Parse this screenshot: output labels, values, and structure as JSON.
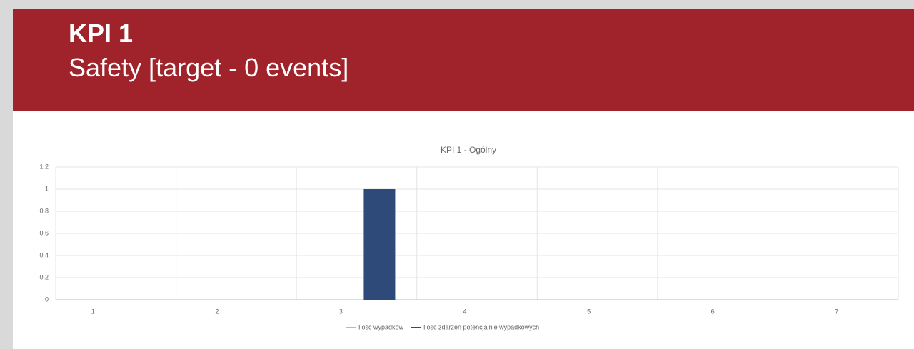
{
  "header": {
    "title": "KPI 1",
    "subtitle": "Safety [target - 0 events]"
  },
  "chart_data": {
    "type": "bar",
    "title": "KPI 1 - Ogólny",
    "categories": [
      "1",
      "2",
      "3",
      "4",
      "5",
      "6",
      "7"
    ],
    "series": [
      {
        "name": "Ilość wypadków",
        "color": "#8fc3e8",
        "values": [
          0,
          0,
          0,
          0,
          0,
          0,
          0
        ]
      },
      {
        "name": "Ilość zdarzeń potencjalnie wypadkowych",
        "color": "#2e4a78",
        "values": [
          0,
          0,
          1,
          0,
          0,
          0,
          0
        ]
      }
    ],
    "ylim": [
      0,
      1.2
    ],
    "yticks": [
      0,
      0.2,
      0.4,
      0.6,
      0.8,
      1,
      1.2
    ],
    "grid": true,
    "legend": "bottom"
  }
}
